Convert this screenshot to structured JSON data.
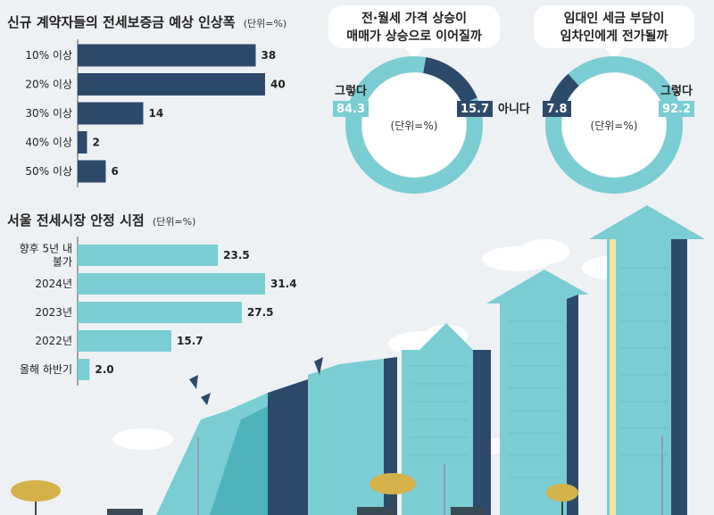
{
  "colors": {
    "navy": "#2d4a6b",
    "teal": "#7acdd2",
    "teal_dark": "#4fb3bc",
    "bg": "#eef1f4"
  },
  "chart_data": [
    {
      "type": "bar",
      "orientation": "horizontal",
      "title": "신규 계약자들의 전세보증금 예상 인상폭",
      "unit": "(단위=%)",
      "categories": [
        "10% 이상",
        "20% 이상",
        "30% 이상",
        "40% 이상",
        "50% 이상"
      ],
      "values": [
        38,
        40,
        14,
        2,
        6
      ],
      "xlim": [
        0,
        40
      ],
      "color": "#2d4a6b"
    },
    {
      "type": "bar",
      "orientation": "horizontal",
      "title": "서울 전세시장 안정 시점",
      "unit": "(단위=%)",
      "categories": [
        [
          "향후 5년 내",
          "불가"
        ],
        [
          "2024년"
        ],
        [
          "2023년"
        ],
        [
          "2022년"
        ],
        [
          "올해 하반기"
        ]
      ],
      "values": [
        23.5,
        31.4,
        27.5,
        15.7,
        2.0
      ],
      "value_labels": [
        "23.5",
        "31.4",
        "27.5",
        "15.7",
        "2.0"
      ],
      "xlim": [
        0,
        31.4
      ],
      "color": "#7acdd2"
    },
    {
      "type": "pie",
      "style": "donut",
      "title": [
        "전·월세 가격 상승이",
        "매매가 상승으로 이어질까"
      ],
      "unit": "(단위=%)",
      "slices": [
        {
          "label": "그렇다",
          "value": 84.3,
          "color": "#7acdd2"
        },
        {
          "label": "아니다",
          "value": 15.7,
          "color": "#2d4a6b"
        }
      ]
    },
    {
      "type": "pie",
      "style": "donut",
      "title": [
        "임대인 세금 부담이",
        "임차인에게 전가될까"
      ],
      "unit": "(단위=%)",
      "slices": [
        {
          "label": "그렇다",
          "value": 92.2,
          "color": "#7acdd2"
        },
        {
          "label": "",
          "value": 7.8,
          "color": "#2d4a6b"
        }
      ]
    }
  ]
}
